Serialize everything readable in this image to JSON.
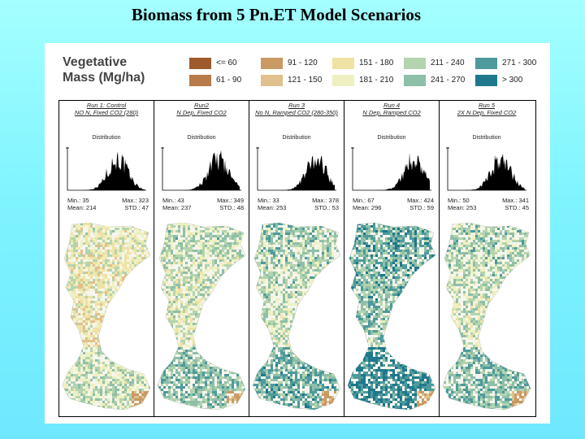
{
  "title": "Biomass from 5 Pn.ET Model Scenarios",
  "legend": {
    "title_line1": "Vegetative",
    "title_line2": "Mass (Mg/ha)",
    "classes": [
      {
        "label": "<= 60",
        "color": "#9e5a2c"
      },
      {
        "label": "61 - 90",
        "color": "#b77a48"
      },
      {
        "label": "91 - 120",
        "color": "#c99a64"
      },
      {
        "label": "121 - 150",
        "color": "#e0c08c"
      },
      {
        "label": "151 - 180",
        "color": "#efe2a4"
      },
      {
        "label": "181 - 210",
        "color": "#eff0c2"
      },
      {
        "label": "211 - 240",
        "color": "#b3d4ae"
      },
      {
        "label": "241 - 270",
        "color": "#8ebfa8"
      },
      {
        "label": "271 - 300",
        "color": "#4e9a9c"
      },
      {
        "label": "> 300",
        "color": "#1f788c"
      }
    ]
  },
  "panels": [
    {
      "run": "Run 1: Control",
      "desc": "NO N, Fixed CO2 (280)",
      "dist_label": "Distribution",
      "min": "Min.: 35",
      "max": "Max.: 323",
      "mean": "Mean: 214",
      "std": "STD.: 47"
    },
    {
      "run": "Run2",
      "desc": "N Dep, Fixed CO2",
      "dist_label": "Distribution",
      "min": "Min.: 43",
      "max": "Max.: 349",
      "mean": "Mean: 237",
      "std": "STD.: 48"
    },
    {
      "run": "Run 3",
      "desc": "No N, Ramped CO2 (280-350)",
      "dist_label": "Distribution",
      "min": "Min.: 33",
      "max": "Max.: 378",
      "mean": "Mean: 253",
      "std": "STD.: 53"
    },
    {
      "run": "Run 4",
      "desc": "N Dep, Ramped CO2",
      "dist_label": "Distribution",
      "min": "Min.: 67",
      "max": "Max.: 424",
      "mean": "Mean: 296",
      "std": "STD.: 59"
    },
    {
      "run": "Run 5",
      "desc": "2X N Dep, Fixed CO2",
      "dist_label": "Distribution",
      "min": "Min.: 50",
      "max": "Max.: 341",
      "mean": "Mean: 253",
      "std": "STD.: 45"
    }
  ]
}
